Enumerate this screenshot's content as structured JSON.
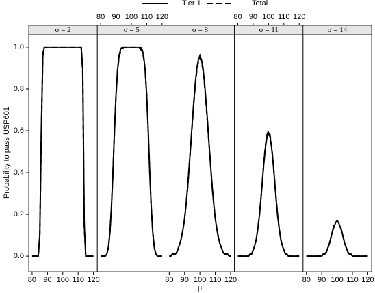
{
  "chart_data": [
    {
      "type": "line",
      "strip": "σ = 2",
      "xlabel": "μ",
      "ylabel": "Probability to pass USP601",
      "xaxis_side": "bottom",
      "x": [
        80,
        81,
        82,
        83,
        84,
        85,
        86,
        87,
        88,
        89,
        90,
        91,
        92,
        93,
        94,
        95,
        96,
        97,
        98,
        99,
        100,
        101,
        102,
        103,
        104,
        105,
        106,
        107,
        108,
        109,
        110,
        111,
        112,
        113,
        114,
        115,
        116,
        117,
        118,
        119,
        120
      ],
      "series": [
        {
          "name": "Tier 1",
          "color": "#000000",
          "dash": "solid",
          "values": [
            0,
            0,
            0,
            0,
            0,
            0.1,
            0.6,
            0.97,
            1,
            1,
            1,
            1,
            1,
            1,
            1,
            1,
            1,
            1,
            1,
            1,
            1,
            1,
            1,
            1,
            1,
            1,
            1,
            1,
            1,
            1,
            1,
            1,
            1,
            0.9,
            0.15,
            0,
            0,
            0,
            0,
            0,
            0
          ]
        },
        {
          "name": "Total",
          "color": "#000000",
          "dash": "dashed",
          "values": [
            0,
            0,
            0,
            0,
            0,
            0.1,
            0.58,
            0.96,
            1,
            1,
            1,
            1,
            1,
            1,
            1,
            1,
            1,
            1,
            1,
            1,
            1,
            1,
            1,
            1,
            1,
            1,
            1,
            1,
            1,
            1,
            1,
            1,
            1,
            0.88,
            0.14,
            0,
            0,
            0,
            0,
            0,
            0
          ]
        }
      ],
      "xlim": [
        77.8,
        122.5
      ],
      "ylim": [
        -0.075,
        1.062
      ],
      "xticks": [
        80,
        90,
        100,
        110,
        120
      ],
      "yticks": [
        {
          "value": 0,
          "label": "0.0"
        },
        {
          "value": 0.2,
          "label": "0.2"
        },
        {
          "value": 0.4,
          "label": "0.4"
        },
        {
          "value": 0.6,
          "label": "0.6"
        },
        {
          "value": 0.8,
          "label": "0.8"
        },
        {
          "value": 1,
          "label": "1.0"
        }
      ]
    },
    {
      "type": "line",
      "strip": "σ = 5",
      "xaxis_side": "top",
      "x": [
        80,
        81,
        82,
        83,
        84,
        85,
        86,
        87,
        88,
        89,
        90,
        91,
        92,
        93,
        94,
        95,
        96,
        97,
        98,
        99,
        100,
        101,
        102,
        103,
        104,
        105,
        106,
        107,
        108,
        109,
        110,
        111,
        112,
        113,
        114,
        115,
        116,
        117,
        118,
        119,
        120
      ],
      "series": [
        {
          "name": "Tier 1",
          "color": "#000000",
          "dash": "solid",
          "values": [
            0,
            0,
            0,
            0,
            0.01,
            0.04,
            0.11,
            0.23,
            0.4,
            0.6,
            0.77,
            0.89,
            0.96,
            0.99,
            1,
            1,
            1,
            1,
            1,
            1,
            1,
            1,
            1,
            1,
            1,
            1,
            1,
            0.99,
            0.96,
            0.89,
            0.77,
            0.6,
            0.4,
            0.23,
            0.11,
            0.04,
            0.01,
            0,
            0,
            0,
            0
          ]
        },
        {
          "name": "Total",
          "color": "#000000",
          "dash": "dashed",
          "values": [
            0,
            0,
            0,
            0,
            0.01,
            0.04,
            0.11,
            0.23,
            0.4,
            0.6,
            0.77,
            0.89,
            0.95,
            0.98,
            0.99,
            1,
            1,
            1,
            1,
            1,
            1,
            1,
            1,
            1,
            1,
            1,
            0.99,
            0.98,
            0.95,
            0.89,
            0.77,
            0.6,
            0.4,
            0.23,
            0.11,
            0.04,
            0.01,
            0,
            0,
            0,
            0
          ]
        }
      ],
      "xlim": [
        77.8,
        122.5
      ],
      "ylim": [
        -0.075,
        1.062
      ],
      "xticks": [
        80,
        90,
        100,
        110,
        120
      ]
    },
    {
      "type": "line",
      "strip": "σ = 8",
      "xaxis_side": "bottom",
      "x": [
        80,
        81,
        82,
        83,
        84,
        85,
        86,
        87,
        88,
        89,
        90,
        91,
        92,
        93,
        94,
        95,
        96,
        97,
        98,
        99,
        100,
        101,
        102,
        103,
        104,
        105,
        106,
        107,
        108,
        109,
        110,
        111,
        112,
        113,
        114,
        115,
        116,
        117,
        118,
        119,
        120
      ],
      "series": [
        {
          "name": "Tier 1",
          "color": "#000000",
          "dash": "solid",
          "values": [
            0,
            0,
            0.01,
            0.01,
            0.01,
            0.02,
            0.04,
            0.06,
            0.09,
            0.13,
            0.18,
            0.25,
            0.33,
            0.43,
            0.53,
            0.64,
            0.74,
            0.83,
            0.9,
            0.94,
            0.96,
            0.94,
            0.9,
            0.83,
            0.74,
            0.64,
            0.53,
            0.43,
            0.33,
            0.25,
            0.18,
            0.13,
            0.09,
            0.06,
            0.04,
            0.02,
            0.01,
            0.01,
            0.01,
            0,
            0
          ]
        },
        {
          "name": "Total",
          "color": "#000000",
          "dash": "dashed",
          "values": [
            0,
            0,
            0.01,
            0.01,
            0.01,
            0.02,
            0.04,
            0.06,
            0.09,
            0.13,
            0.18,
            0.25,
            0.33,
            0.43,
            0.53,
            0.63,
            0.73,
            0.82,
            0.89,
            0.93,
            0.95,
            0.93,
            0.89,
            0.82,
            0.73,
            0.63,
            0.53,
            0.43,
            0.33,
            0.25,
            0.18,
            0.13,
            0.09,
            0.06,
            0.04,
            0.02,
            0.01,
            0.01,
            0.01,
            0,
            0
          ]
        }
      ],
      "xlim": [
        77.8,
        122.5
      ],
      "ylim": [
        -0.075,
        1.062
      ],
      "xticks": [
        80,
        90,
        100,
        110,
        120
      ]
    },
    {
      "type": "line",
      "strip": "σ = 11",
      "xaxis_side": "top",
      "x": [
        80,
        81,
        82,
        83,
        84,
        85,
        86,
        87,
        88,
        89,
        90,
        91,
        92,
        93,
        94,
        95,
        96,
        97,
        98,
        99,
        100,
        101,
        102,
        103,
        104,
        105,
        106,
        107,
        108,
        109,
        110,
        111,
        112,
        113,
        114,
        115,
        116,
        117,
        118,
        119,
        120
      ],
      "series": [
        {
          "name": "Tier 1",
          "color": "#000000",
          "dash": "solid",
          "values": [
            0,
            0,
            0,
            0,
            0,
            0,
            0,
            0,
            0.01,
            0.01,
            0.03,
            0.05,
            0.08,
            0.13,
            0.19,
            0.27,
            0.36,
            0.45,
            0.52,
            0.57,
            0.59,
            0.57,
            0.52,
            0.45,
            0.36,
            0.27,
            0.19,
            0.13,
            0.08,
            0.05,
            0.03,
            0.01,
            0.01,
            0,
            0,
            0,
            0,
            0,
            0,
            0,
            0
          ]
        },
        {
          "name": "Total",
          "color": "#000000",
          "dash": "dashed",
          "values": [
            0,
            0,
            0,
            0,
            0,
            0,
            0,
            0,
            0.01,
            0.01,
            0.03,
            0.05,
            0.08,
            0.13,
            0.19,
            0.27,
            0.36,
            0.45,
            0.53,
            0.58,
            0.6,
            0.58,
            0.53,
            0.45,
            0.36,
            0.27,
            0.19,
            0.13,
            0.08,
            0.05,
            0.03,
            0.01,
            0.01,
            0,
            0,
            0,
            0,
            0,
            0,
            0,
            0
          ]
        }
      ],
      "xlim": [
        77.8,
        122.5
      ],
      "ylim": [
        -0.075,
        1.062
      ],
      "xticks": [
        80,
        90,
        100,
        110,
        120
      ]
    },
    {
      "type": "line",
      "strip": "σ = 14",
      "xaxis_side": "bottom",
      "x": [
        80,
        81,
        82,
        83,
        84,
        85,
        86,
        87,
        88,
        89,
        90,
        91,
        92,
        93,
        94,
        95,
        96,
        97,
        98,
        99,
        100,
        101,
        102,
        103,
        104,
        105,
        106,
        107,
        108,
        109,
        110,
        111,
        112,
        113,
        114,
        115,
        116,
        117,
        118,
        119,
        120
      ],
      "series": [
        {
          "name": "Tier 1",
          "color": "#000000",
          "dash": "solid",
          "values": [
            0,
            0,
            0,
            0,
            0,
            0,
            0,
            0,
            0,
            0,
            0,
            0.01,
            0.01,
            0.02,
            0.04,
            0.06,
            0.09,
            0.12,
            0.14,
            0.16,
            0.17,
            0.16,
            0.14,
            0.12,
            0.09,
            0.06,
            0.04,
            0.02,
            0.01,
            0.01,
            0,
            0,
            0,
            0,
            0,
            0,
            0,
            0,
            0,
            0,
            0
          ]
        },
        {
          "name": "Total",
          "color": "#000000",
          "dash": "dashed",
          "values": [
            0,
            0,
            0,
            0,
            0,
            0,
            0,
            0,
            0,
            0,
            0,
            0.01,
            0.01,
            0.02,
            0.04,
            0.06,
            0.09,
            0.12,
            0.15,
            0.16,
            0.17,
            0.16,
            0.15,
            0.12,
            0.09,
            0.06,
            0.04,
            0.02,
            0.01,
            0.01,
            0,
            0,
            0,
            0,
            0,
            0,
            0,
            0,
            0,
            0,
            0
          ]
        }
      ],
      "xlim": [
        77.8,
        122.5
      ],
      "ylim": [
        -0.075,
        1.062
      ],
      "xticks": [
        80,
        90,
        100,
        110,
        120
      ]
    }
  ]
}
